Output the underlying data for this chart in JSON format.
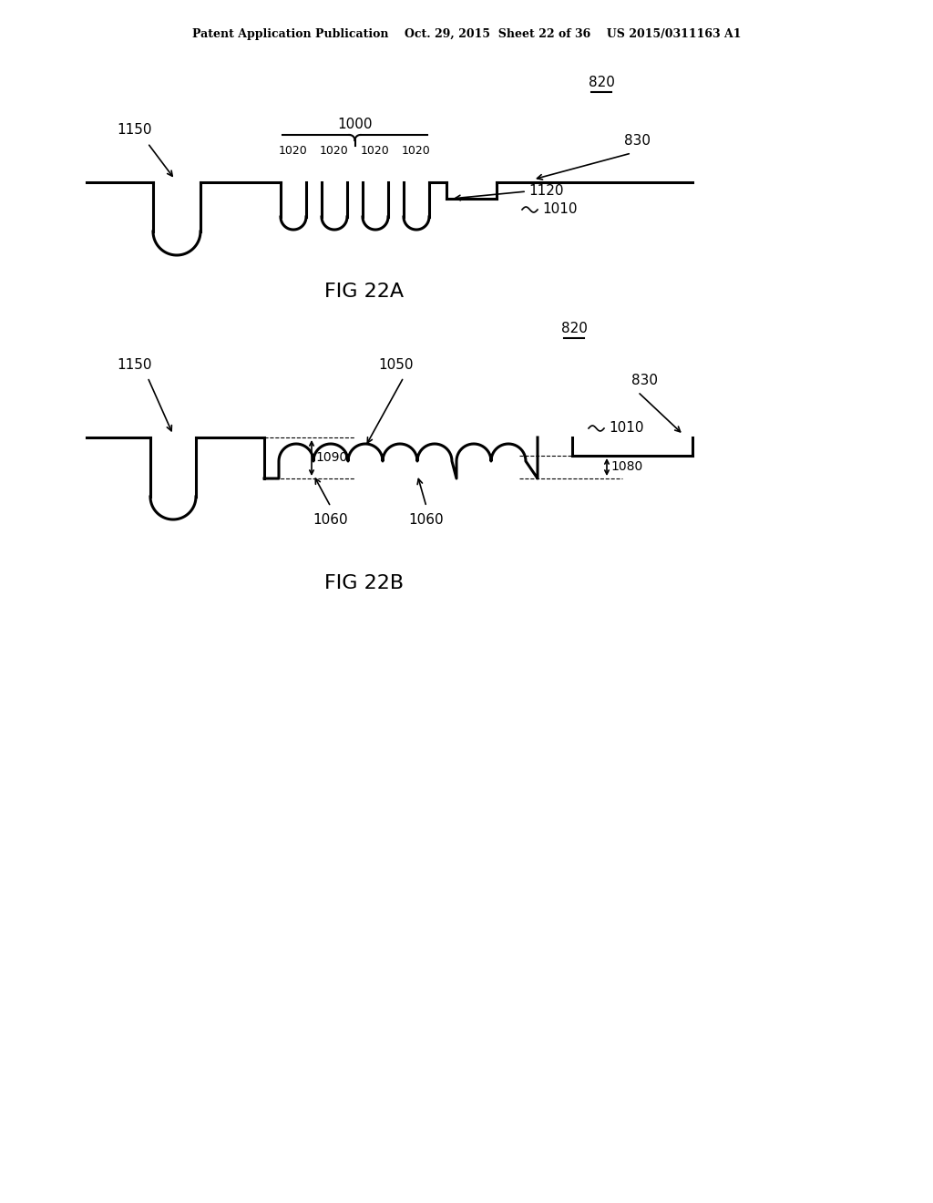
{
  "bg_color": "#ffffff",
  "line_color": "#000000",
  "header_text": "Patent Application Publication    Oct. 29, 2015  Sheet 22 of 36    US 2015/0311163 A1",
  "fig22a_label": "FIG 22A",
  "fig22b_label": "FIG 22B",
  "lw": 2.2
}
